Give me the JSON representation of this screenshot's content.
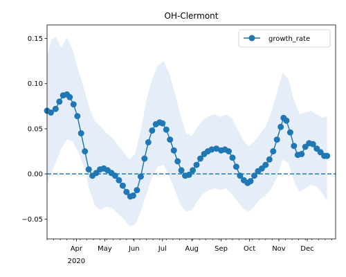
{
  "chart_data": {
    "type": "line",
    "title": "OH-Clermont",
    "xlabel": "",
    "ylabel": "",
    "x_range": [
      "2020-03-01",
      "2020-12-31"
    ],
    "ylim": [
      -0.072,
      0.165
    ],
    "y_ticks": [
      -0.05,
      0.0,
      0.05,
      0.1,
      0.15
    ],
    "y_tick_labels": [
      "−0.05",
      "0.00",
      "0.05",
      "0.10",
      "0.15"
    ],
    "x_ticks": [
      {
        "date": "2020-04-01",
        "label": "Apr"
      },
      {
        "date": "2020-05-01",
        "label": "May"
      },
      {
        "date": "2020-06-01",
        "label": "Jun"
      },
      {
        "date": "2020-07-01",
        "label": "Jul"
      },
      {
        "date": "2020-08-01",
        "label": "Aug"
      },
      {
        "date": "2020-09-01",
        "label": "Sep"
      },
      {
        "date": "2020-10-01",
        "label": "Oct"
      },
      {
        "date": "2020-11-01",
        "label": "Nov"
      },
      {
        "date": "2020-12-01",
        "label": "Dec"
      }
    ],
    "x_year_label": "2020",
    "grid": false,
    "legend": {
      "position": "top-right",
      "entries": [
        "growth_rate"
      ]
    },
    "reference_line": {
      "y": 0.0,
      "style": "dashed"
    },
    "colors": {
      "line": "#1f77b4",
      "band": "#dce8f5"
    },
    "series": [
      {
        "name": "growth_rate",
        "points": [
          [
            "2020-03-01",
            0.07
          ],
          [
            "2020-03-05",
            0.068
          ],
          [
            "2020-03-10",
            0.072
          ],
          [
            "2020-03-14",
            0.08
          ],
          [
            "2020-03-18",
            0.087
          ],
          [
            "2020-03-22",
            0.088
          ],
          [
            "2020-03-25",
            0.085
          ],
          [
            "2020-03-29",
            0.077
          ],
          [
            "2020-04-02",
            0.064
          ],
          [
            "2020-04-06",
            0.045
          ],
          [
            "2020-04-10",
            0.025
          ],
          [
            "2020-04-14",
            0.005
          ],
          [
            "2020-04-18",
            -0.002
          ],
          [
            "2020-04-22",
            0.001
          ],
          [
            "2020-04-26",
            0.005
          ],
          [
            "2020-04-30",
            0.006
          ],
          [
            "2020-05-04",
            0.004
          ],
          [
            "2020-05-08",
            0.001
          ],
          [
            "2020-05-12",
            -0.002
          ],
          [
            "2020-05-16",
            -0.007
          ],
          [
            "2020-05-20",
            -0.013
          ],
          [
            "2020-05-24",
            -0.02
          ],
          [
            "2020-05-28",
            -0.025
          ],
          [
            "2020-05-31",
            -0.024
          ],
          [
            "2020-06-04",
            -0.018
          ],
          [
            "2020-06-08",
            -0.003
          ],
          [
            "2020-06-12",
            0.017
          ],
          [
            "2020-06-16",
            0.035
          ],
          [
            "2020-06-20",
            0.048
          ],
          [
            "2020-06-24",
            0.055
          ],
          [
            "2020-06-28",
            0.057
          ],
          [
            "2020-07-01",
            0.056
          ],
          [
            "2020-07-05",
            0.049
          ],
          [
            "2020-07-09",
            0.038
          ],
          [
            "2020-07-13",
            0.026
          ],
          [
            "2020-07-17",
            0.014
          ],
          [
            "2020-07-21",
            0.004
          ],
          [
            "2020-07-25",
            -0.002
          ],
          [
            "2020-07-29",
            -0.001
          ],
          [
            "2020-08-02",
            0.004
          ],
          [
            "2020-08-06",
            0.01
          ],
          [
            "2020-08-10",
            0.017
          ],
          [
            "2020-08-14",
            0.022
          ],
          [
            "2020-08-18",
            0.025
          ],
          [
            "2020-08-22",
            0.027
          ],
          [
            "2020-08-27",
            0.028
          ],
          [
            "2020-09-01",
            0.026
          ],
          [
            "2020-09-05",
            0.027
          ],
          [
            "2020-09-09",
            0.025
          ],
          [
            "2020-09-13",
            0.018
          ],
          [
            "2020-09-17",
            0.008
          ],
          [
            "2020-09-21",
            -0.002
          ],
          [
            "2020-09-25",
            -0.007
          ],
          [
            "2020-09-29",
            -0.01
          ],
          [
            "2020-10-02",
            -0.008
          ],
          [
            "2020-10-06",
            -0.002
          ],
          [
            "2020-10-10",
            0.003
          ],
          [
            "2020-10-14",
            0.006
          ],
          [
            "2020-10-18",
            0.01
          ],
          [
            "2020-10-22",
            0.016
          ],
          [
            "2020-10-26",
            0.025
          ],
          [
            "2020-10-30",
            0.038
          ],
          [
            "2020-11-03",
            0.052
          ],
          [
            "2020-11-06",
            0.062
          ],
          [
            "2020-11-09",
            0.059
          ],
          [
            "2020-11-13",
            0.046
          ],
          [
            "2020-11-17",
            0.031
          ],
          [
            "2020-11-21",
            0.021
          ],
          [
            "2020-11-25",
            0.022
          ],
          [
            "2020-11-29",
            0.03
          ],
          [
            "2020-12-03",
            0.034
          ],
          [
            "2020-12-07",
            0.033
          ],
          [
            "2020-12-11",
            0.028
          ],
          [
            "2020-12-15",
            0.024
          ],
          [
            "2020-12-19",
            0.02
          ],
          [
            "2020-12-22",
            0.02
          ]
        ]
      }
    ],
    "uncertainty_band": {
      "upper": [
        [
          "2020-03-01",
          0.13
        ],
        [
          "2020-03-05",
          0.148
        ],
        [
          "2020-03-10",
          0.152
        ],
        [
          "2020-03-16",
          0.14
        ],
        [
          "2020-03-22",
          0.151
        ],
        [
          "2020-03-28",
          0.138
        ],
        [
          "2020-04-03",
          0.115
        ],
        [
          "2020-04-09",
          0.095
        ],
        [
          "2020-04-15",
          0.072
        ],
        [
          "2020-04-21",
          0.058
        ],
        [
          "2020-04-27",
          0.052
        ],
        [
          "2020-05-03",
          0.045
        ],
        [
          "2020-05-09",
          0.04
        ],
        [
          "2020-05-15",
          0.032
        ],
        [
          "2020-05-21",
          0.024
        ],
        [
          "2020-05-27",
          0.016
        ],
        [
          "2020-06-02",
          0.022
        ],
        [
          "2020-06-08",
          0.048
        ],
        [
          "2020-06-14",
          0.082
        ],
        [
          "2020-06-20",
          0.105
        ],
        [
          "2020-06-26",
          0.12
        ],
        [
          "2020-07-02",
          0.125
        ],
        [
          "2020-07-08",
          0.112
        ],
        [
          "2020-07-14",
          0.09
        ],
        [
          "2020-07-20",
          0.065
        ],
        [
          "2020-07-26",
          0.045
        ],
        [
          "2020-08-01",
          0.042
        ],
        [
          "2020-08-07",
          0.052
        ],
        [
          "2020-08-13",
          0.06
        ],
        [
          "2020-08-19",
          0.064
        ],
        [
          "2020-08-25",
          0.066
        ],
        [
          "2020-08-31",
          0.063
        ],
        [
          "2020-09-06",
          0.066
        ],
        [
          "2020-09-12",
          0.062
        ],
        [
          "2020-09-18",
          0.05
        ],
        [
          "2020-09-24",
          0.038
        ],
        [
          "2020-09-30",
          0.03
        ],
        [
          "2020-10-06",
          0.036
        ],
        [
          "2020-10-12",
          0.044
        ],
        [
          "2020-10-18",
          0.052
        ],
        [
          "2020-10-24",
          0.068
        ],
        [
          "2020-10-30",
          0.09
        ],
        [
          "2020-11-05",
          0.112
        ],
        [
          "2020-11-11",
          0.105
        ],
        [
          "2020-11-17",
          0.082
        ],
        [
          "2020-11-23",
          0.066
        ],
        [
          "2020-11-29",
          0.068
        ],
        [
          "2020-12-05",
          0.07
        ],
        [
          "2020-12-11",
          0.066
        ],
        [
          "2020-12-17",
          0.062
        ],
        [
          "2020-12-22",
          0.064
        ]
      ],
      "lower": [
        [
          "2020-03-01",
          -0.012
        ],
        [
          "2020-03-05",
          0.0
        ],
        [
          "2020-03-10",
          0.012
        ],
        [
          "2020-03-16",
          0.028
        ],
        [
          "2020-03-22",
          0.038
        ],
        [
          "2020-03-28",
          0.036
        ],
        [
          "2020-04-03",
          0.024
        ],
        [
          "2020-04-09",
          0.008
        ],
        [
          "2020-04-15",
          -0.018
        ],
        [
          "2020-04-21",
          -0.036
        ],
        [
          "2020-04-27",
          -0.04
        ],
        [
          "2020-05-03",
          -0.036
        ],
        [
          "2020-05-09",
          -0.038
        ],
        [
          "2020-05-15",
          -0.044
        ],
        [
          "2020-05-21",
          -0.05
        ],
        [
          "2020-05-27",
          -0.058
        ],
        [
          "2020-06-02",
          -0.056
        ],
        [
          "2020-06-08",
          -0.042
        ],
        [
          "2020-06-14",
          -0.022
        ],
        [
          "2020-06-20",
          -0.004
        ],
        [
          "2020-06-26",
          0.008
        ],
        [
          "2020-07-02",
          0.01
        ],
        [
          "2020-07-08",
          -0.002
        ],
        [
          "2020-07-14",
          -0.018
        ],
        [
          "2020-07-20",
          -0.034
        ],
        [
          "2020-07-26",
          -0.042
        ],
        [
          "2020-08-01",
          -0.04
        ],
        [
          "2020-08-07",
          -0.03
        ],
        [
          "2020-08-13",
          -0.022
        ],
        [
          "2020-08-19",
          -0.018
        ],
        [
          "2020-08-25",
          -0.016
        ],
        [
          "2020-08-31",
          -0.018
        ],
        [
          "2020-09-06",
          -0.016
        ],
        [
          "2020-09-12",
          -0.022
        ],
        [
          "2020-09-18",
          -0.03
        ],
        [
          "2020-09-24",
          -0.038
        ],
        [
          "2020-09-30",
          -0.042
        ],
        [
          "2020-10-06",
          -0.036
        ],
        [
          "2020-10-12",
          -0.028
        ],
        [
          "2020-10-18",
          -0.024
        ],
        [
          "2020-10-24",
          -0.016
        ],
        [
          "2020-10-30",
          -0.004
        ],
        [
          "2020-11-05",
          0.016
        ],
        [
          "2020-11-11",
          0.012
        ],
        [
          "2020-11-17",
          -0.008
        ],
        [
          "2020-11-23",
          -0.02
        ],
        [
          "2020-11-29",
          -0.016
        ],
        [
          "2020-12-05",
          -0.012
        ],
        [
          "2020-12-11",
          -0.014
        ],
        [
          "2020-12-17",
          -0.022
        ],
        [
          "2020-12-22",
          -0.03
        ]
      ]
    }
  }
}
